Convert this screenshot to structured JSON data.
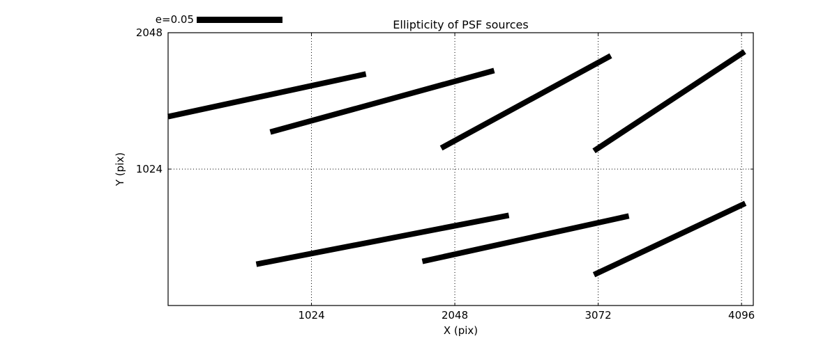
{
  "figure": {
    "background": "#ffffff",
    "foreground": "#000000"
  },
  "chart_data": {
    "type": "line",
    "title": "Ellipticity of PSF sources",
    "xlabel": "X (pix)",
    "ylabel": "Y (pix)",
    "xlim": [
      0,
      4180
    ],
    "ylim": [
      0,
      2048
    ],
    "x_ticks": [
      1024,
      2048,
      3072,
      4096
    ],
    "y_ticks": [
      1024,
      2048
    ],
    "grid": "dotted",
    "legend": {
      "label": "e=0.05",
      "key_color": "#000000"
    },
    "series_color": "#000000",
    "segments": [
      {
        "x1": 0,
        "y1": 1418,
        "x2": 1413,
        "y2": 1738
      },
      {
        "x1": 730,
        "y1": 1302,
        "x2": 2329,
        "y2": 1764
      },
      {
        "x1": 1951,
        "y1": 1182,
        "x2": 3162,
        "y2": 1875
      },
      {
        "x1": 3042,
        "y1": 1161,
        "x2": 4118,
        "y2": 1906
      },
      {
        "x1": 630,
        "y1": 310,
        "x2": 2434,
        "y2": 677
      },
      {
        "x1": 1816,
        "y1": 331,
        "x2": 3291,
        "y2": 672
      },
      {
        "x1": 3042,
        "y1": 231,
        "x2": 4123,
        "y2": 767
      }
    ]
  }
}
